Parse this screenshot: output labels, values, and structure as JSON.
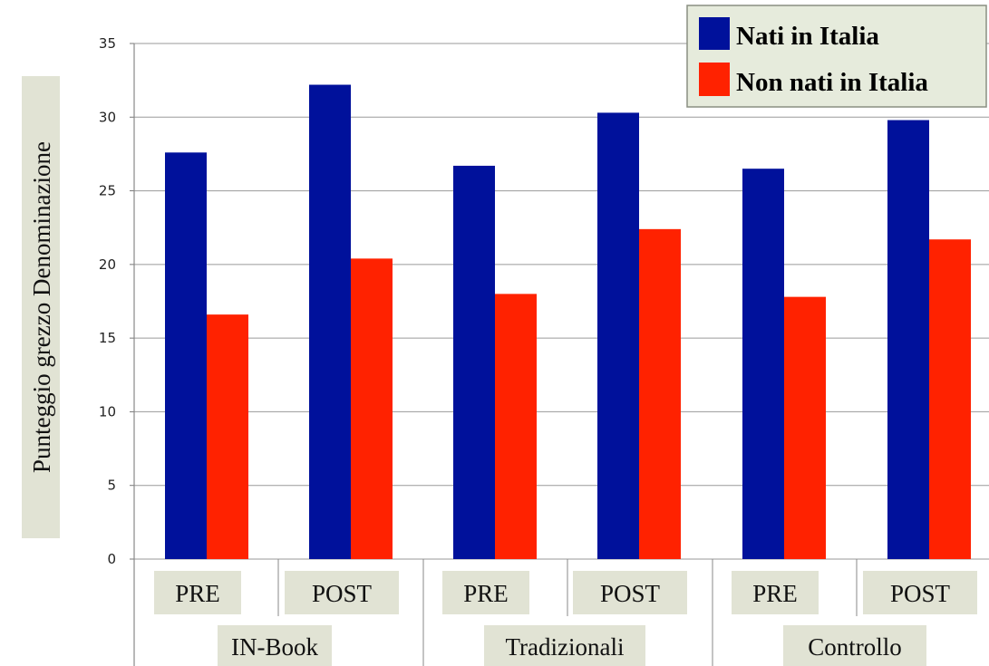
{
  "chart_data": {
    "type": "bar",
    "ylabel": "Punteggio grezzo Denominazione",
    "ylim": [
      0,
      35
    ],
    "yticks": [
      0,
      5,
      10,
      15,
      20,
      25,
      30,
      35
    ],
    "grid": true,
    "legend_position": "top-right",
    "categories": [
      "PRE",
      "POST",
      "PRE",
      "POST",
      "PRE",
      "POST"
    ],
    "groups": [
      {
        "label": "IN-Book",
        "categories": [
          0,
          1
        ]
      },
      {
        "label": "Tradizionali",
        "categories": [
          2,
          3
        ]
      },
      {
        "label": "Controllo",
        "categories": [
          4,
          5
        ]
      }
    ],
    "series": [
      {
        "name": "Nati in Italia",
        "color": "#00119b",
        "values": [
          27.6,
          32.2,
          26.7,
          30.3,
          26.5,
          29.8
        ]
      },
      {
        "name": "Non nati in Italia",
        "color": "#ff2200",
        "values": [
          16.6,
          20.4,
          18.0,
          22.4,
          17.8,
          21.7
        ]
      }
    ]
  }
}
